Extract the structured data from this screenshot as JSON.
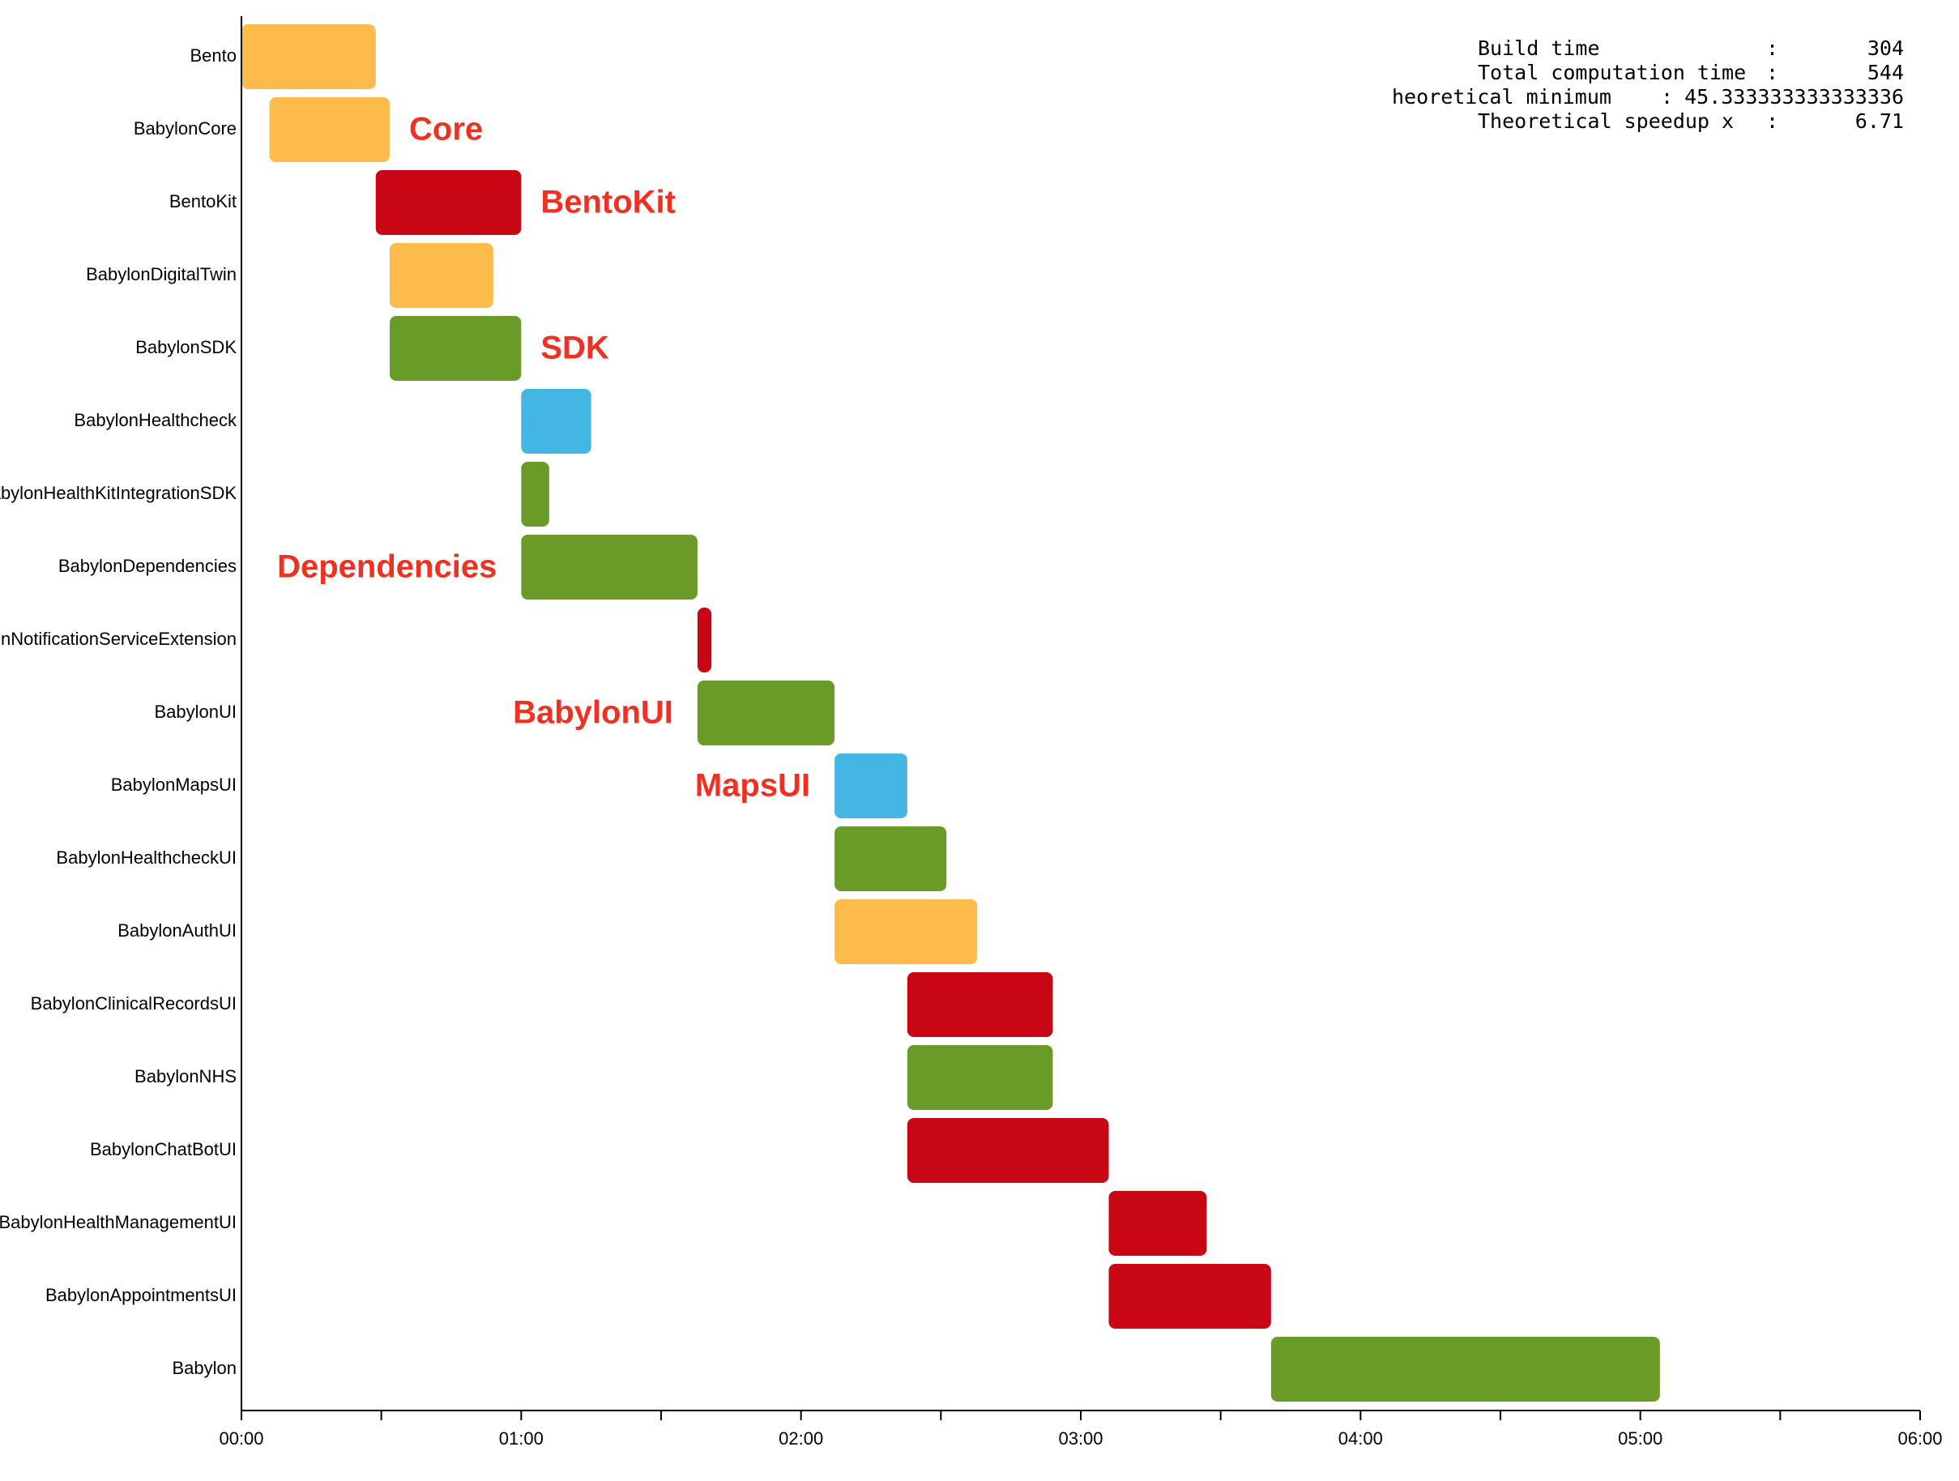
{
  "chart_data": {
    "type": "gantt",
    "x_unit": "minutes",
    "xlim": [
      0,
      6
    ],
    "x_ticks": [
      0,
      0.5,
      1,
      1.5,
      2,
      2.5,
      3,
      3.5,
      4,
      4.5,
      5,
      5.5,
      6
    ],
    "x_tick_labels": [
      "00:00",
      "",
      "01:00",
      "",
      "02:00",
      "",
      "03:00",
      "",
      "04:00",
      "",
      "05:00",
      "",
      "06:00"
    ],
    "colors": {
      "orange": "#fcbb4a",
      "red": "#c80614",
      "green": "#6a9a28",
      "blue": "#43b6e3"
    },
    "tasks": [
      {
        "name": "Bento",
        "start": 0.0,
        "end": 0.48,
        "color": "orange"
      },
      {
        "name": "BabylonCore",
        "start": 0.1,
        "end": 0.53,
        "color": "orange"
      },
      {
        "name": "BentoKit",
        "start": 0.48,
        "end": 1.0,
        "color": "red"
      },
      {
        "name": "BabylonDigitalTwin",
        "start": 0.53,
        "end": 0.9,
        "color": "orange"
      },
      {
        "name": "BabylonSDK",
        "start": 0.53,
        "end": 1.0,
        "color": "green"
      },
      {
        "name": "BabylonHealthcheck",
        "start": 1.0,
        "end": 1.25,
        "color": "blue"
      },
      {
        "name": "BabylonHealthKitIntegrationSDK",
        "start": 1.0,
        "end": 1.1,
        "color": "green"
      },
      {
        "name": "BabylonDependencies",
        "start": 1.0,
        "end": 1.63,
        "color": "green"
      },
      {
        "name": "BabylonNotificationServiceExtension",
        "start": 1.63,
        "end": 1.68,
        "color": "red"
      },
      {
        "name": "BabylonUI",
        "start": 1.63,
        "end": 2.12,
        "color": "green"
      },
      {
        "name": "BabylonMapsUI",
        "start": 2.12,
        "end": 2.38,
        "color": "blue"
      },
      {
        "name": "BabylonHealthcheckUI",
        "start": 2.12,
        "end": 2.52,
        "color": "green"
      },
      {
        "name": "BabylonAuthUI",
        "start": 2.12,
        "end": 2.63,
        "color": "orange"
      },
      {
        "name": "BabylonClinicalRecordsUI",
        "start": 2.38,
        "end": 2.9,
        "color": "red"
      },
      {
        "name": "BabylonNHS",
        "start": 2.38,
        "end": 2.9,
        "color": "green"
      },
      {
        "name": "BabylonChatBotUI",
        "start": 2.38,
        "end": 3.1,
        "color": "red"
      },
      {
        "name": "BabylonHealthManagementUI",
        "start": 3.1,
        "end": 3.45,
        "color": "red"
      },
      {
        "name": "BabylonAppointmentsUI",
        "start": 3.1,
        "end": 3.68,
        "color": "red"
      },
      {
        "name": "Babylon",
        "start": 3.68,
        "end": 5.07,
        "color": "green"
      }
    ],
    "annotations": [
      {
        "text": "Core",
        "row": 1
      },
      {
        "text": "BentoKit",
        "row": 2
      },
      {
        "text": "SDK",
        "row": 4
      },
      {
        "text": "Dependencies",
        "row": 7
      },
      {
        "text": "BabylonUI",
        "row": 9
      },
      {
        "text": "MapsUI",
        "row": 10
      }
    ],
    "stats": [
      {
        "label": "Build time",
        "sep": ":",
        "value": "304"
      },
      {
        "label": "Total computation time",
        "sep": ":",
        "value": "544"
      },
      {
        "label": "heoretical minimum",
        "sep": ":",
        "value": "45.333333333333336"
      },
      {
        "label": "Theoretical speedup x",
        "sep": ":",
        "value": "6.71"
      }
    ]
  }
}
